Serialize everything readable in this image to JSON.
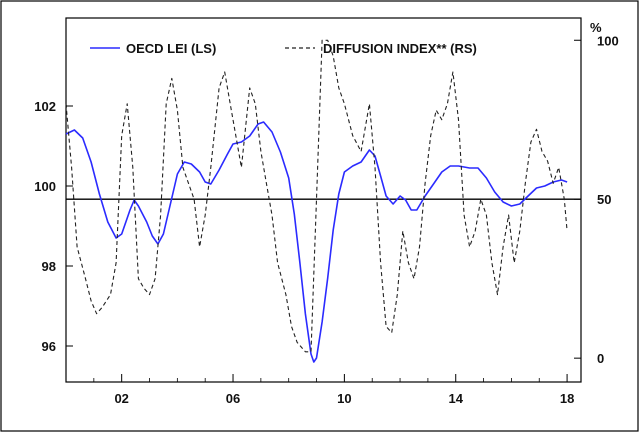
{
  "chart_data": {
    "type": "line",
    "right_axis_unit": "%",
    "x_ticks": [
      "02",
      "06",
      "10",
      "14",
      "18"
    ],
    "x_range": [
      2000,
      2018.5
    ],
    "left_ticks": [
      "96",
      "98",
      "100",
      "102"
    ],
    "left_range": [
      95.1,
      104.2
    ],
    "right_ticks": [
      "0",
      "50",
      "100"
    ],
    "right_range": [
      -7.5,
      107
    ],
    "reference_line": 50,
    "legend_position": "top",
    "colors": {
      "lei": "#2b2bff",
      "diffusion": "#222222",
      "frame": "#000000"
    },
    "series": [
      {
        "name": "OECD LEI (LS)",
        "axis": "left",
        "style": "solid",
        "points": [
          [
            2000.0,
            101.3
          ],
          [
            2000.3,
            101.4
          ],
          [
            2000.6,
            101.2
          ],
          [
            2000.9,
            100.6
          ],
          [
            2001.2,
            99.8
          ],
          [
            2001.5,
            99.1
          ],
          [
            2001.8,
            98.7
          ],
          [
            2002.0,
            98.8
          ],
          [
            2002.3,
            99.4
          ],
          [
            2002.45,
            99.65
          ],
          [
            2002.6,
            99.5
          ],
          [
            2002.9,
            99.1
          ],
          [
            2003.1,
            98.75
          ],
          [
            2003.3,
            98.55
          ],
          [
            2003.5,
            98.8
          ],
          [
            2003.8,
            99.7
          ],
          [
            2004.0,
            100.3
          ],
          [
            2004.25,
            100.6
          ],
          [
            2004.5,
            100.55
          ],
          [
            2004.8,
            100.35
          ],
          [
            2005.0,
            100.1
          ],
          [
            2005.2,
            100.05
          ],
          [
            2005.5,
            100.4
          ],
          [
            2005.8,
            100.8
          ],
          [
            2006.0,
            101.05
          ],
          [
            2006.3,
            101.1
          ],
          [
            2006.6,
            101.25
          ],
          [
            2006.9,
            101.55
          ],
          [
            2007.1,
            101.6
          ],
          [
            2007.4,
            101.35
          ],
          [
            2007.7,
            100.85
          ],
          [
            2008.0,
            100.2
          ],
          [
            2008.2,
            99.3
          ],
          [
            2008.4,
            98.1
          ],
          [
            2008.6,
            96.8
          ],
          [
            2008.8,
            95.8
          ],
          [
            2008.9,
            95.6
          ],
          [
            2009.0,
            95.7
          ],
          [
            2009.2,
            96.6
          ],
          [
            2009.4,
            97.7
          ],
          [
            2009.6,
            98.9
          ],
          [
            2009.8,
            99.8
          ],
          [
            2010.0,
            100.35
          ],
          [
            2010.3,
            100.5
          ],
          [
            2010.6,
            100.6
          ],
          [
            2010.9,
            100.9
          ],
          [
            2011.1,
            100.75
          ],
          [
            2011.3,
            100.25
          ],
          [
            2011.5,
            99.75
          ],
          [
            2011.75,
            99.55
          ],
          [
            2012.0,
            99.75
          ],
          [
            2012.2,
            99.65
          ],
          [
            2012.4,
            99.4
          ],
          [
            2012.6,
            99.4
          ],
          [
            2012.9,
            99.75
          ],
          [
            2013.2,
            100.05
          ],
          [
            2013.5,
            100.35
          ],
          [
            2013.8,
            100.5
          ],
          [
            2014.1,
            100.5
          ],
          [
            2014.5,
            100.45
          ],
          [
            2014.8,
            100.45
          ],
          [
            2015.1,
            100.2
          ],
          [
            2015.4,
            99.85
          ],
          [
            2015.7,
            99.6
          ],
          [
            2016.0,
            99.5
          ],
          [
            2016.3,
            99.55
          ],
          [
            2016.6,
            99.75
          ],
          [
            2016.9,
            99.95
          ],
          [
            2017.2,
            100.0
          ],
          [
            2017.5,
            100.1
          ],
          [
            2017.8,
            100.15
          ],
          [
            2018.0,
            100.1
          ]
        ]
      },
      {
        "name": "DIFFUSION INDEX** (RS)",
        "axis": "right",
        "style": "dashed",
        "points": [
          [
            2000.0,
            80
          ],
          [
            2000.2,
            60
          ],
          [
            2000.4,
            35
          ],
          [
            2000.7,
            25
          ],
          [
            2000.9,
            18
          ],
          [
            2001.1,
            14
          ],
          [
            2001.3,
            16
          ],
          [
            2001.6,
            20
          ],
          [
            2001.8,
            30
          ],
          [
            2002.0,
            70
          ],
          [
            2002.2,
            80
          ],
          [
            2002.4,
            60
          ],
          [
            2002.6,
            25
          ],
          [
            2002.8,
            22
          ],
          [
            2003.0,
            20
          ],
          [
            2003.2,
            25
          ],
          [
            2003.4,
            45
          ],
          [
            2003.6,
            80
          ],
          [
            2003.8,
            88
          ],
          [
            2004.0,
            78
          ],
          [
            2004.2,
            60
          ],
          [
            2004.4,
            55
          ],
          [
            2004.6,
            50
          ],
          [
            2004.8,
            35
          ],
          [
            2005.0,
            45
          ],
          [
            2005.2,
            60
          ],
          [
            2005.5,
            85
          ],
          [
            2005.7,
            90
          ],
          [
            2005.9,
            80
          ],
          [
            2006.1,
            70
          ],
          [
            2006.3,
            60
          ],
          [
            2006.6,
            85
          ],
          [
            2006.8,
            80
          ],
          [
            2007.0,
            65
          ],
          [
            2007.2,
            55
          ],
          [
            2007.4,
            45
          ],
          [
            2007.6,
            30
          ],
          [
            2007.9,
            20
          ],
          [
            2008.1,
            10
          ],
          [
            2008.3,
            5
          ],
          [
            2008.6,
            2
          ],
          [
            2008.8,
            2
          ],
          [
            2009.0,
            50
          ],
          [
            2009.2,
            100
          ],
          [
            2009.4,
            100
          ],
          [
            2009.6,
            95
          ],
          [
            2009.8,
            85
          ],
          [
            2010.0,
            80
          ],
          [
            2010.3,
            70
          ],
          [
            2010.6,
            65
          ],
          [
            2010.9,
            80
          ],
          [
            2011.1,
            60
          ],
          [
            2011.3,
            30
          ],
          [
            2011.5,
            10
          ],
          [
            2011.7,
            8
          ],
          [
            2011.9,
            20
          ],
          [
            2012.1,
            40
          ],
          [
            2012.3,
            30
          ],
          [
            2012.5,
            25
          ],
          [
            2012.7,
            35
          ],
          [
            2012.9,
            55
          ],
          [
            2013.1,
            70
          ],
          [
            2013.3,
            78
          ],
          [
            2013.5,
            75
          ],
          [
            2013.7,
            80
          ],
          [
            2013.9,
            90
          ],
          [
            2014.1,
            75
          ],
          [
            2014.3,
            45
          ],
          [
            2014.5,
            35
          ],
          [
            2014.7,
            40
          ],
          [
            2014.9,
            50
          ],
          [
            2015.1,
            45
          ],
          [
            2015.3,
            30
          ],
          [
            2015.5,
            20
          ],
          [
            2015.7,
            35
          ],
          [
            2015.9,
            45
          ],
          [
            2016.1,
            30
          ],
          [
            2016.3,
            40
          ],
          [
            2016.5,
            55
          ],
          [
            2016.7,
            68
          ],
          [
            2016.9,
            72
          ],
          [
            2017.1,
            65
          ],
          [
            2017.3,
            62
          ],
          [
            2017.5,
            55
          ],
          [
            2017.7,
            60
          ],
          [
            2017.9,
            50
          ],
          [
            2018.0,
            40
          ]
        ]
      }
    ]
  }
}
